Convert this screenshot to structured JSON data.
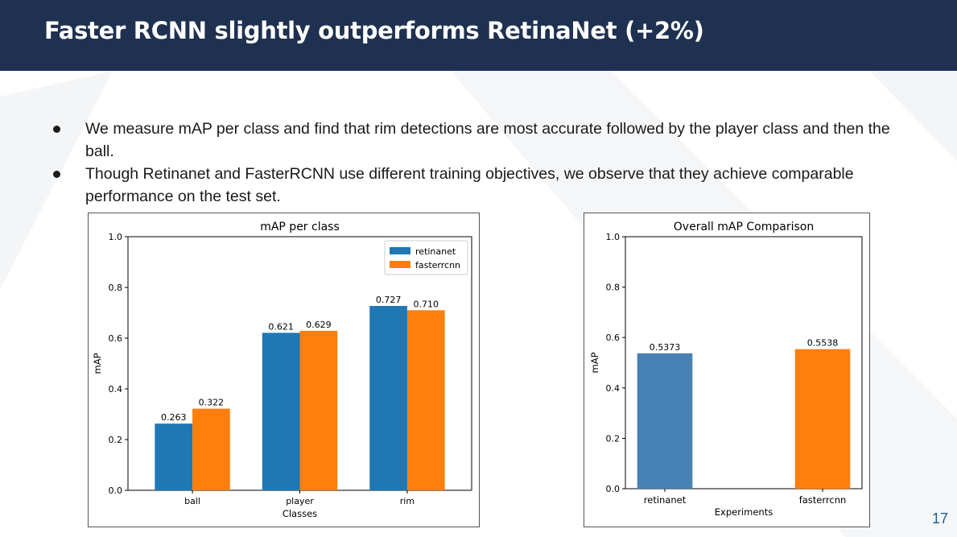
{
  "slide": {
    "title": "Faster RCNN slightly outperforms RetinaNet (+2%)",
    "bullets": [
      "We measure mAP per class and find that rim detections are most accurate followed by the player class and then the ball.",
      "Though Retinanet and FasterRCNN use different training objectives, we observe that they achieve comparable performance on the test set."
    ],
    "page_number": "17"
  },
  "colors": {
    "header_bg": "#1f3150",
    "retinanet": "#1f77b4",
    "fasterrcnn": "#ff7f0e",
    "retinanet_overall": "#4682b4"
  },
  "chart_data": [
    {
      "type": "bar",
      "title": "mAP per class",
      "xlabel": "Classes",
      "ylabel": "mAP",
      "ylim": [
        0,
        1.0
      ],
      "yticks": [
        "0.0",
        "0.2",
        "0.4",
        "0.6",
        "0.8",
        "1.0"
      ],
      "categories": [
        "ball",
        "player",
        "rim"
      ],
      "series": [
        {
          "name": "retinanet",
          "values": [
            0.263,
            0.621,
            0.727
          ],
          "labels": [
            "0.263",
            "0.621",
            "0.727"
          ],
          "color": "#1f77b4"
        },
        {
          "name": "fasterrcnn",
          "values": [
            0.322,
            0.629,
            0.71
          ],
          "labels": [
            "0.322",
            "0.629",
            "0.710"
          ],
          "color": "#ff7f0e"
        }
      ],
      "legend": "top-right",
      "grid": false
    },
    {
      "type": "bar",
      "title": "Overall mAP Comparison",
      "xlabel": "Experiments",
      "ylabel": "mAP",
      "ylim": [
        0,
        1.0
      ],
      "yticks": [
        "0.0",
        "0.2",
        "0.4",
        "0.6",
        "0.8",
        "1.0"
      ],
      "categories": [
        "retinanet",
        "fasterrcnn"
      ],
      "values": [
        0.5373,
        0.5538
      ],
      "labels": [
        "0.5373",
        "0.5538"
      ],
      "colors": [
        "#4682b4",
        "#ff7f0e"
      ],
      "grid": false
    }
  ]
}
